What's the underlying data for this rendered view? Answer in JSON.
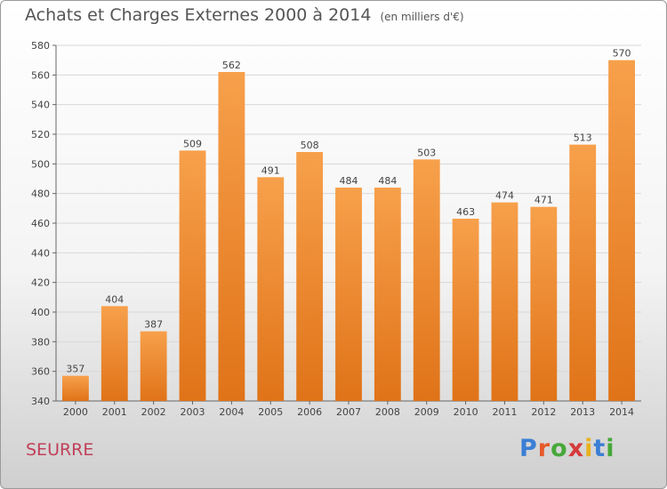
{
  "title": "Achats et Charges Externes 2000 à 2014",
  "unit": "(en milliers d'€)",
  "location": "SEURRE",
  "logo": {
    "letters": [
      "P",
      "r",
      "o",
      "x",
      "i",
      "t",
      "i"
    ],
    "colors": [
      "#3a7fd5",
      "#e65a2a",
      "#46a83a",
      "#d63a3a",
      "#e8b21e",
      "#3a7fd5",
      "#46a83a"
    ]
  },
  "colors": {
    "bar_top": "#f7a04b",
    "bar_bottom": "#e07318",
    "axis": "#666666",
    "grid": "#d8d8d8"
  },
  "chart_data": {
    "type": "bar",
    "title": "Achats et Charges Externes 2000 à 2014",
    "categories": [
      "2000",
      "2001",
      "2002",
      "2003",
      "2004",
      "2005",
      "2006",
      "2007",
      "2008",
      "2009",
      "2010",
      "2011",
      "2012",
      "2013",
      "2014"
    ],
    "values": [
      357,
      404,
      387,
      509,
      562,
      491,
      508,
      484,
      484,
      503,
      463,
      474,
      471,
      513,
      570
    ],
    "yticks": [
      340,
      360,
      380,
      400,
      420,
      440,
      460,
      480,
      500,
      520,
      540,
      560,
      580
    ],
    "ylim": [
      340,
      580
    ],
    "grid": true,
    "xlabel": "",
    "ylabel": ""
  }
}
